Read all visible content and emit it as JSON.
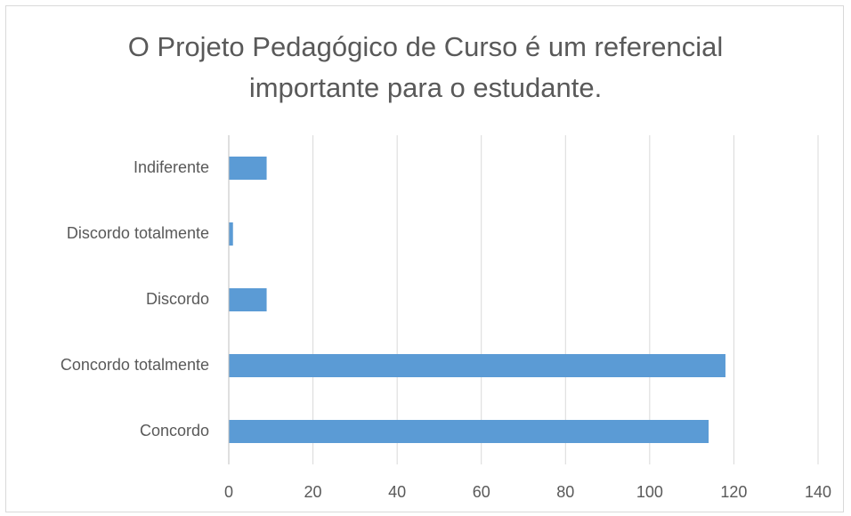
{
  "chart_data": {
    "type": "bar",
    "orientation": "horizontal",
    "title": "O Projeto Pedagógico de Curso é um referencial importante para o estudante.",
    "categories": [
      "Concordo",
      "Concordo totalmente",
      "Discordo",
      "Discordo totalmente",
      "Indiferente"
    ],
    "values": [
      114,
      118,
      9,
      1,
      9
    ],
    "color": "#5b9bd5",
    "xlim": [
      0,
      140
    ],
    "xticks": [
      0,
      20,
      40,
      60,
      80,
      100,
      120,
      140
    ],
    "grid": true
  }
}
